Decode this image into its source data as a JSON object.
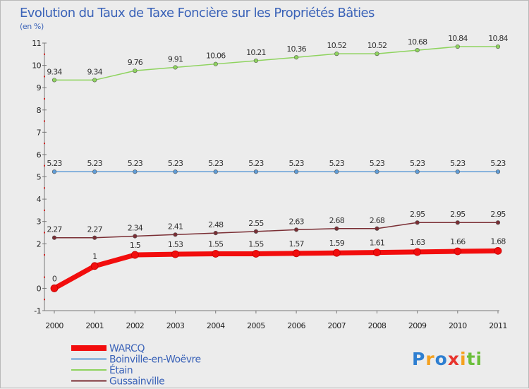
{
  "chart_data": {
    "type": "line",
    "title": "Evolution du Taux de Taxe Foncière sur les Propriétés Bâties",
    "ylabel": "(en %)",
    "xlabel": "",
    "x": [
      "2000",
      "2001",
      "2002",
      "2003",
      "2004",
      "2005",
      "2006",
      "2007",
      "2008",
      "2009",
      "2010",
      "2011"
    ],
    "ylim": [
      -1,
      11
    ],
    "yticks": [
      {
        "v": -1,
        "t": "-1"
      },
      {
        "v": 0,
        "t": "0"
      },
      {
        "v": 2,
        "t": "2"
      },
      {
        "v": 3,
        "t": "3"
      },
      {
        "v": 4,
        "t": "4"
      },
      {
        "v": 5,
        "t": "5"
      },
      {
        "v": 6,
        "t": "6"
      },
      {
        "v": 7,
        "t": "7"
      },
      {
        "v": 8,
        "t": "8"
      },
      {
        "v": 9,
        "t": "9"
      },
      {
        "v": 10,
        "t": "10"
      },
      {
        "v": 11,
        "t": "11"
      }
    ],
    "series": [
      {
        "name": "Gussainville",
        "color": "#7a2e34",
        "width": 1.5,
        "marker": 2.8,
        "values": [
          2.27,
          2.27,
          2.34,
          2.41,
          2.48,
          2.55,
          2.63,
          2.68,
          2.68,
          2.95,
          2.95,
          2.95
        ],
        "labels": [
          "2.27",
          "2.27",
          "2.34",
          "2.41",
          "2.48",
          "2.55",
          "2.63",
          "2.68",
          "2.68",
          "2.95",
          "2.95",
          "2.95"
        ]
      },
      {
        "name": "Étain",
        "color": "#8ed35e",
        "width": 1.5,
        "marker": 2.8,
        "values": [
          9.34,
          9.34,
          9.76,
          9.91,
          10.06,
          10.21,
          10.36,
          10.52,
          10.52,
          10.68,
          10.84,
          10.84
        ],
        "labels": [
          "9.34",
          "9.34",
          "9.76",
          "9.91",
          "10.06",
          "10.21",
          "10.36",
          "10.52",
          "10.52",
          "10.68",
          "10.84",
          "10.84"
        ]
      },
      {
        "name": "Boinville-en-Woëvre",
        "color": "#5f9cd6",
        "width": 1.5,
        "marker": 2.8,
        "values": [
          5.23,
          5.23,
          5.23,
          5.23,
          5.23,
          5.23,
          5.23,
          5.23,
          5.23,
          5.23,
          5.23,
          5.23
        ],
        "labels": [
          "5.23",
          "5.23",
          "5.23",
          "5.23",
          "5.23",
          "5.23",
          "5.23",
          "5.23",
          "5.23",
          "5.23",
          "5.23",
          "5.23"
        ]
      },
      {
        "name": "WARCQ",
        "color": "#f20d0d",
        "width": 7,
        "marker": 5,
        "values": [
          0,
          1,
          1.5,
          1.53,
          1.55,
          1.55,
          1.57,
          1.59,
          1.61,
          1.63,
          1.66,
          1.68
        ],
        "labels": [
          "0",
          "1",
          "1.5",
          "1.53",
          "1.55",
          "1.55",
          "1.57",
          "1.59",
          "1.61",
          "1.63",
          "1.66",
          "1.68"
        ]
      }
    ],
    "legend_order": [
      "WARCQ",
      "Boinville-en-Woëvre",
      "Étain",
      "Gussainville"
    ],
    "grid": false,
    "legend": "bottom-left"
  },
  "branding": {
    "logo_letters": [
      "P",
      "r",
      "o",
      "x",
      "i",
      "t",
      "i"
    ],
    "logo_colors": [
      "#2e7fd1",
      "#f4a11f",
      "#2e7fd1",
      "#e8352e",
      "#f4a11f",
      "#6cbf3c",
      "#6cbf3c"
    ]
  }
}
